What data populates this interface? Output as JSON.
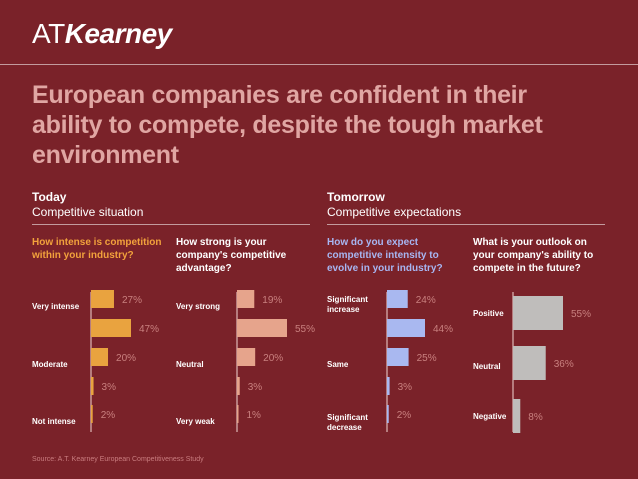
{
  "brand": {
    "logo_a": "AT",
    "logo_b": "Kearney"
  },
  "headline": "European companies are confident in their ability to compete, despite the tough market environment",
  "sections": {
    "today": {
      "title": "Today",
      "subtitle": "Competitive situation"
    },
    "tomorrow": {
      "title": "Tomorrow",
      "subtitle": "Competitive expectations"
    }
  },
  "colors": {
    "background": "#7a2229",
    "orange": "#e9a33f",
    "salmon": "#e6a48c",
    "blue": "#a9b8f0",
    "gray": "#bfbdbb",
    "axis": "#f3d6d4",
    "value_text": "#c9807f"
  },
  "source": "Source: A.T. Kearney European Competitiveness Study",
  "chart_data": [
    {
      "type": "bar",
      "question": "How intense is competition within your industry?",
      "categories": [
        "Very intense",
        "",
        "Moderate",
        "",
        "Not intense"
      ],
      "values": [
        27,
        47,
        20,
        3,
        2
      ],
      "value_labels": [
        "27%",
        "47%",
        "20%",
        "3%",
        "2%"
      ],
      "xlim": [
        0,
        55
      ],
      "color": "#e9a33f"
    },
    {
      "type": "bar",
      "question": "How strong is your company's competitive advantage?",
      "categories": [
        "Very strong",
        "",
        "Neutral",
        "",
        "Very weak"
      ],
      "values": [
        19,
        55,
        20,
        3,
        1
      ],
      "value_labels": [
        "19%",
        "55%",
        "20%",
        "3%",
        "1%"
      ],
      "xlim": [
        0,
        55
      ],
      "color": "#e6a48c"
    },
    {
      "type": "bar",
      "question": "How do you expect competitive intensity to evolve in your industry?",
      "categories": [
        "Significant increase",
        "",
        "Same",
        "",
        "Significant decrease"
      ],
      "values": [
        24,
        44,
        25,
        3,
        2
      ],
      "value_labels": [
        "24%",
        "44%",
        "25%",
        "3%",
        "2%"
      ],
      "xlim": [
        0,
        55
      ],
      "color": "#a9b8f0"
    },
    {
      "type": "bar",
      "question": "What is your outlook on your company's ability to compete in the future?",
      "categories": [
        "Positive",
        "Neutral",
        "Negative"
      ],
      "values": [
        55,
        36,
        8
      ],
      "value_labels": [
        "55%",
        "36%",
        "8%"
      ],
      "xlim": [
        0,
        55
      ],
      "color": "#bfbdbb"
    }
  ]
}
